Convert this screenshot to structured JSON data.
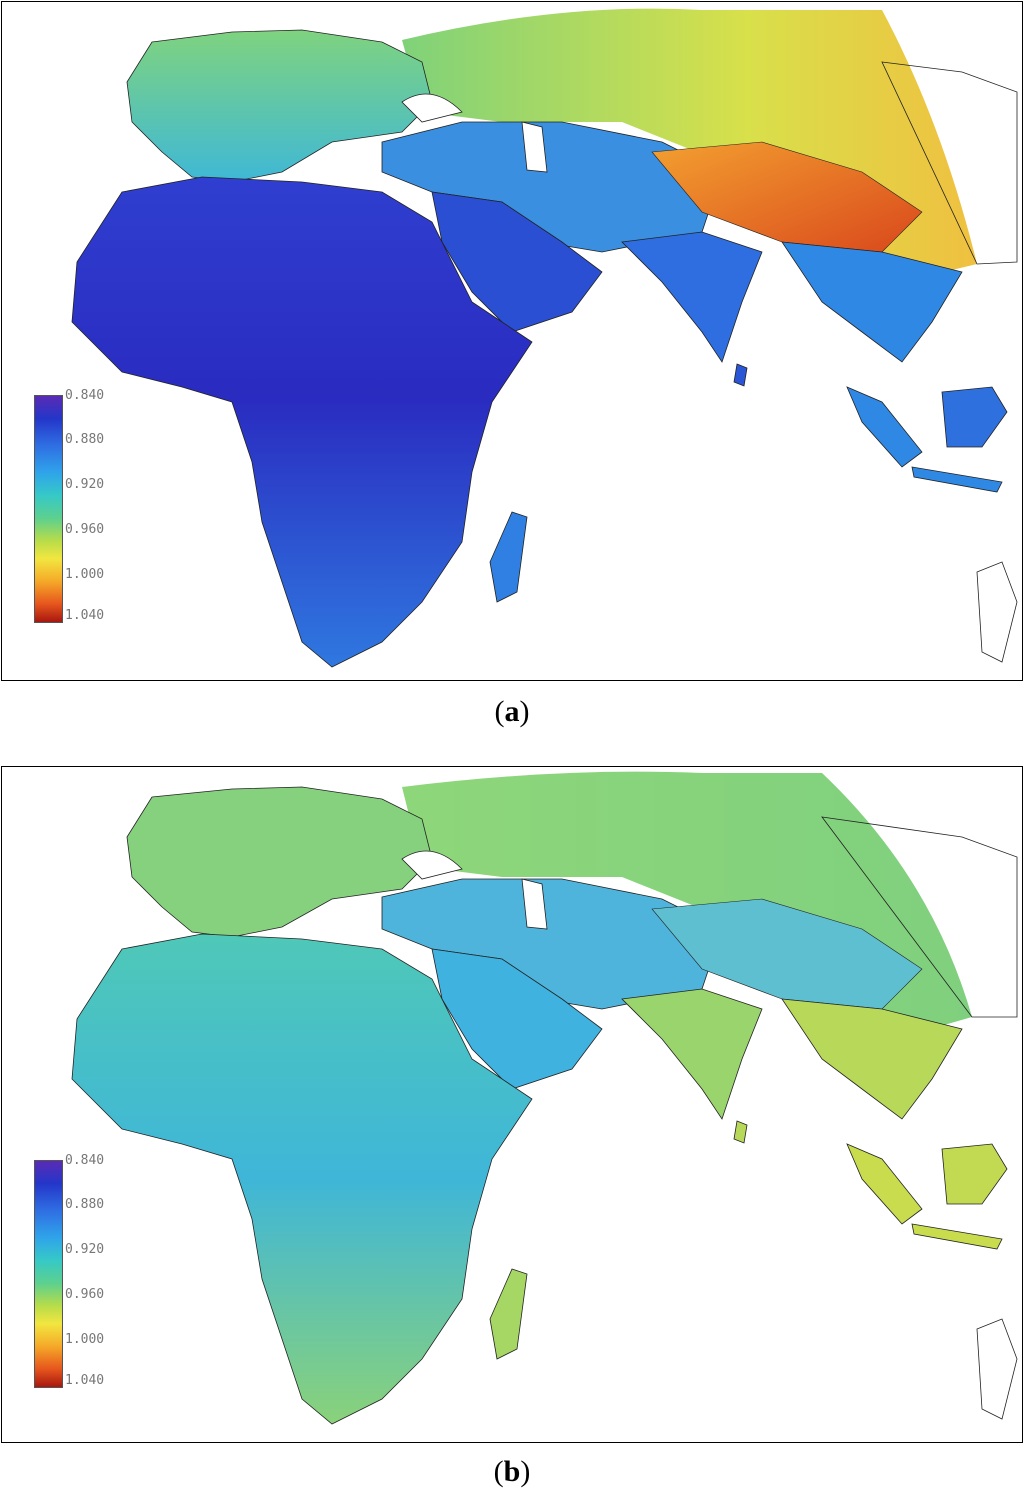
{
  "figure": {
    "panels": [
      {
        "id": "a",
        "caption_letter": "a",
        "legend_ticks": [
          "0.840",
          "0.880",
          "0.920",
          "0.960",
          "1.000",
          "1.040"
        ]
      },
      {
        "id": "b",
        "caption_letter": "b",
        "legend_ticks": [
          "0.840",
          "0.880",
          "0.920",
          "0.960",
          "1.000",
          "1.040"
        ]
      }
    ],
    "colormap": [
      "#5a2bb5",
      "#2436c9",
      "#2f6fe3",
      "#2fa4ea",
      "#36c9c7",
      "#5cd08f",
      "#b7dc4a",
      "#f2e640",
      "#f5a928",
      "#e6561d",
      "#a8170f"
    ]
  }
}
